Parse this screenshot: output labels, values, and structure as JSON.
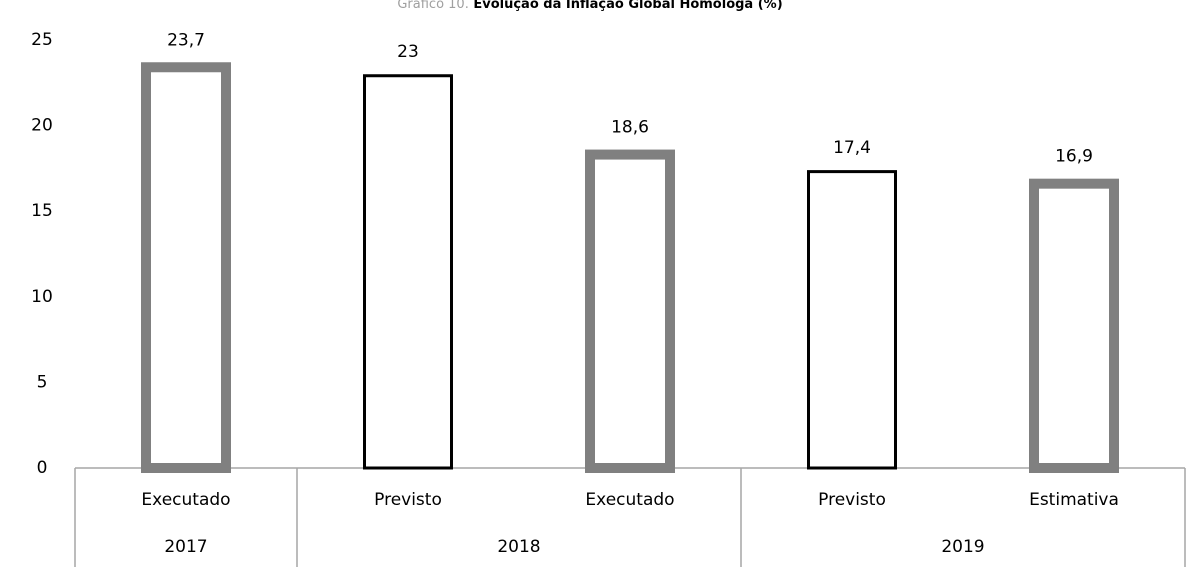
{
  "chart_data": {
    "type": "bar",
    "title_prefix": "Gráfico 10.",
    "title": "Evolução da Inflação Global Homóloga (%)",
    "categories": [
      "Executado",
      "Previsto",
      "Executado",
      "Previsto",
      "Estimativa"
    ],
    "groups": [
      {
        "label": "2017",
        "count": 1
      },
      {
        "label": "2018",
        "count": 2
      },
      {
        "label": "2019",
        "count": 2
      }
    ],
    "values": [
      23.7,
      23,
      18.6,
      17.4,
      16.9
    ],
    "value_labels": [
      "23,7",
      "23",
      "18,6",
      "17,4",
      "16,9"
    ],
    "colors": [
      "#808080",
      "#000000",
      "#808080",
      "#000000",
      "#808080"
    ],
    "ylim": [
      0,
      25
    ],
    "yticks": [
      0,
      5,
      10,
      15,
      20,
      25
    ],
    "grid": false
  }
}
